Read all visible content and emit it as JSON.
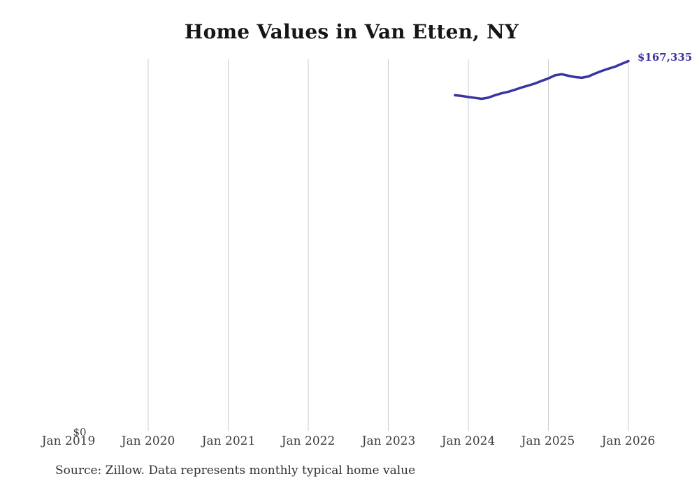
{
  "chart": {
    "title": "Home Values in Van Etten, NY"
  },
  "footer": {
    "source": "Source: Zillow. Data represents monthly typical home value"
  },
  "chart_data": {
    "type": "line",
    "title": "Home Values in Van Etten, NY",
    "x": [
      "2023-11",
      "2023-12",
      "2024-01",
      "2024-02",
      "2024-03",
      "2024-04",
      "2024-05",
      "2024-06",
      "2024-07",
      "2024-08",
      "2024-09",
      "2024-10",
      "2024-11",
      "2024-12",
      "2025-01",
      "2025-02",
      "2025-03",
      "2025-04",
      "2025-05",
      "2025-06",
      "2025-07",
      "2025-08",
      "2025-09",
      "2025-10",
      "2025-11",
      "2025-12",
      "2026-01"
    ],
    "values": [
      151900,
      151600,
      151100,
      150700,
      150300,
      150800,
      151900,
      152800,
      153500,
      154400,
      155400,
      156300,
      157200,
      158400,
      159500,
      160900,
      161400,
      160700,
      160100,
      159800,
      160400,
      161700,
      162900,
      163900,
      164800,
      166100,
      167335
    ],
    "series_name": "Typical home value",
    "end_label": "$167,335",
    "y_zero_label": "$0",
    "x_ticks": [
      {
        "year": 2019,
        "label": "Jan 2019"
      },
      {
        "year": 2020,
        "label": "Jan 2020"
      },
      {
        "year": 2021,
        "label": "Jan 2021"
      },
      {
        "year": 2022,
        "label": "Jan 2022"
      },
      {
        "year": 2023,
        "label": "Jan 2023"
      },
      {
        "year": 2024,
        "label": "Jan 2024"
      },
      {
        "year": 2025,
        "label": "Jan 2025"
      },
      {
        "year": 2026,
        "label": "Jan 2026"
      }
    ],
    "gridline_years": [
      2020,
      2021,
      2022,
      2023,
      2024,
      2025,
      2026
    ],
    "ylim": [
      0,
      167335
    ],
    "grid": "vertical-only",
    "line_color": "#3a33a2",
    "grid_color": "#cccccc",
    "label_color": "#3a33a2"
  }
}
